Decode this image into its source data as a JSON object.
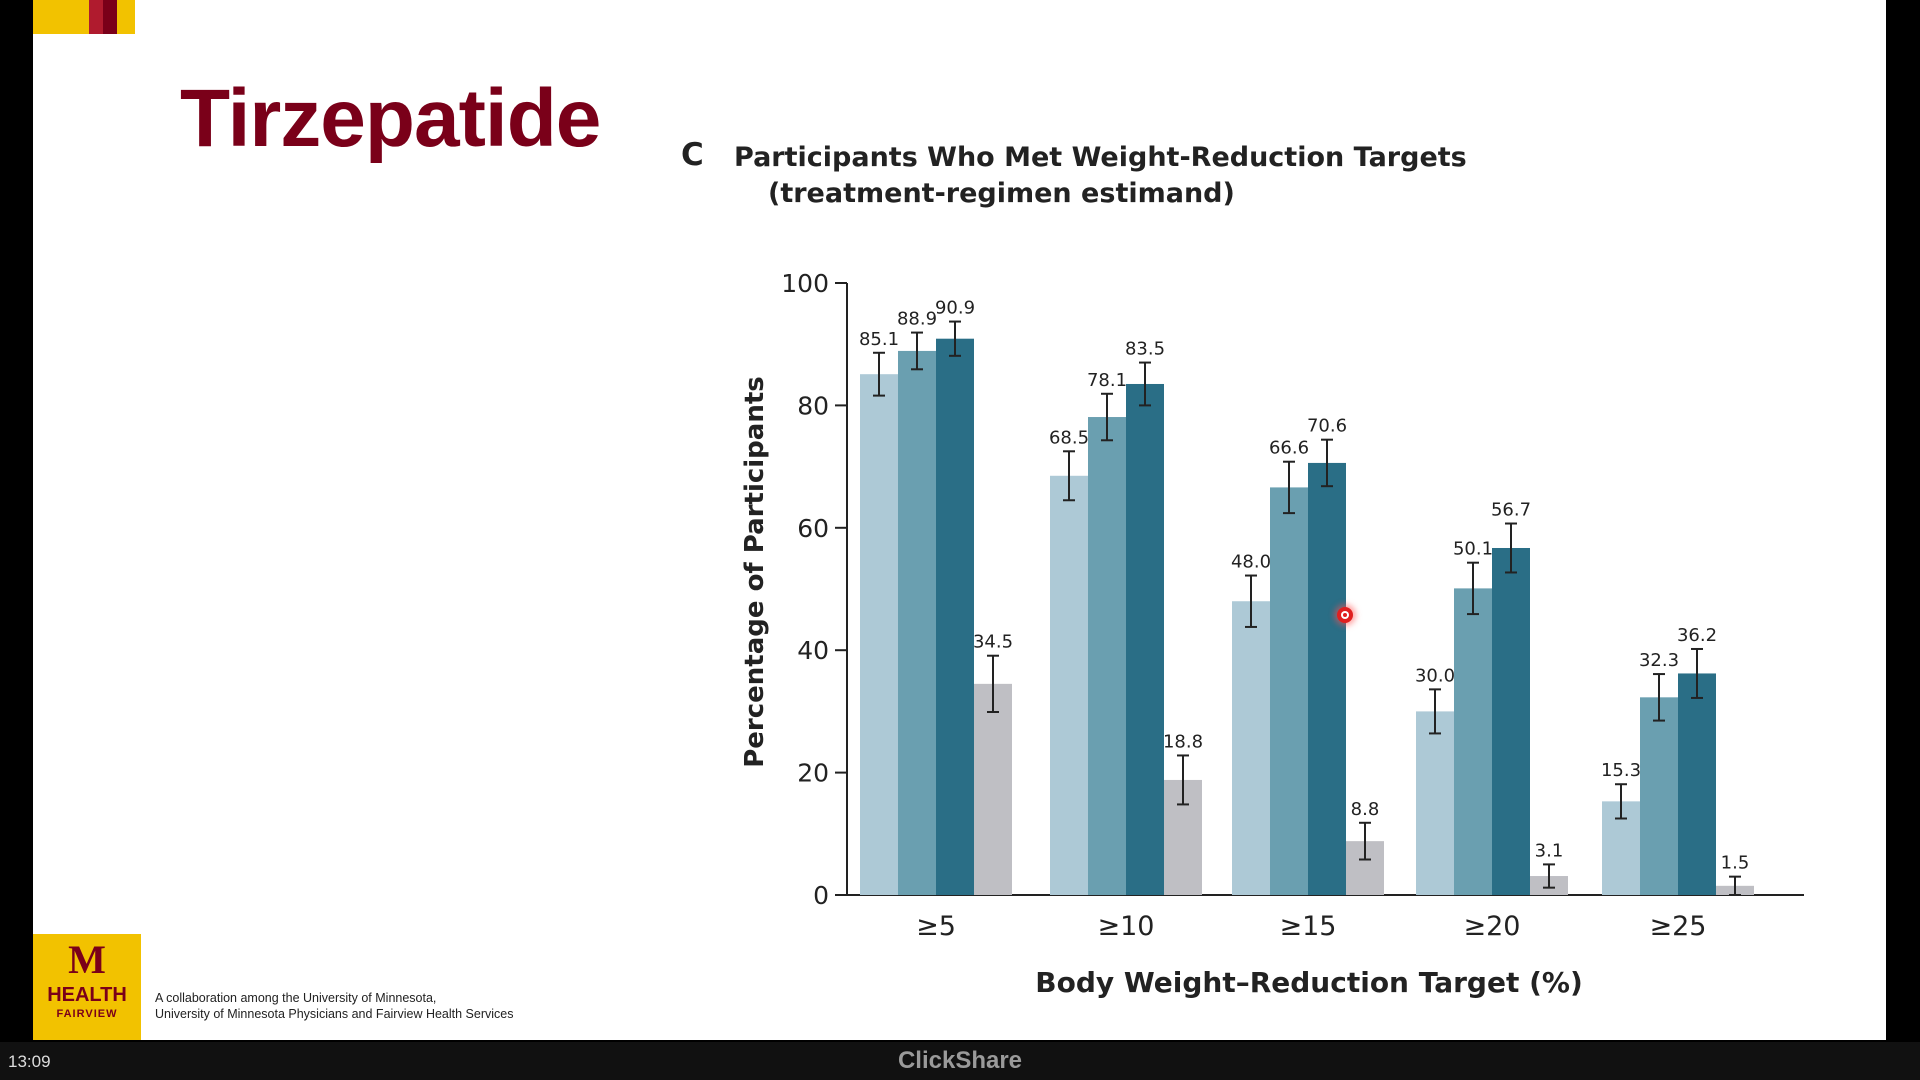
{
  "slide": {
    "title": "Tirzepatide",
    "collaboration_line1": "A collaboration among the University of Minnesota,",
    "collaboration_line2": "University of Minnesota Physicians and Fairview Health Services",
    "logo": {
      "mark": "M",
      "line1": "HEALTH",
      "line2": "FAIRVIEW"
    }
  },
  "screen": {
    "clock": "13:09",
    "brand": "ClickShare"
  },
  "colors": {
    "title": "#7a0019",
    "gold": "#f2c200",
    "series": [
      "#adc9d6",
      "#6a9fb0",
      "#2a6e86",
      "#bfbfc4"
    ]
  },
  "chart_data": {
    "type": "bar",
    "panel_label": "C",
    "title": "Participants Who Met Weight-Reduction Targets",
    "subtitle": "(treatment-regimen estimand)",
    "xlabel": "Body Weight–Reduction Target (%)",
    "ylabel": "Percentage of Participants",
    "ylim": [
      0,
      100
    ],
    "yticks": [
      "0",
      "20",
      "40",
      "60",
      "80",
      "100"
    ],
    "categories": [
      "≥5",
      "≥10",
      "≥15",
      "≥20",
      "≥25"
    ],
    "series": [
      {
        "values": [
          85.1,
          68.5,
          48.0,
          30.0,
          15.3
        ],
        "labels": [
          "85.1",
          "68.5",
          "48.0",
          "30.0",
          "15.3"
        ],
        "err": [
          3.5,
          4.0,
          4.2,
          3.6,
          2.8
        ]
      },
      {
        "values": [
          88.9,
          78.1,
          66.6,
          50.1,
          32.3
        ],
        "labels": [
          "88.9",
          "78.1",
          "66.6",
          "50.1",
          "32.3"
        ],
        "err": [
          3.0,
          3.8,
          4.2,
          4.2,
          3.8
        ]
      },
      {
        "values": [
          90.9,
          83.5,
          70.6,
          56.7,
          36.2
        ],
        "labels": [
          "90.9",
          "83.5",
          "70.6",
          "56.7",
          "36.2"
        ],
        "err": [
          2.8,
          3.5,
          3.8,
          4.0,
          4.0
        ]
      },
      {
        "values": [
          34.5,
          18.8,
          8.8,
          3.1,
          1.5
        ],
        "labels": [
          "34.5",
          "18.8",
          "8.8",
          "3.1",
          "1.5"
        ],
        "err": [
          4.6,
          4.0,
          3.0,
          1.9,
          1.5
        ]
      }
    ],
    "grid": false,
    "legend": "none"
  }
}
